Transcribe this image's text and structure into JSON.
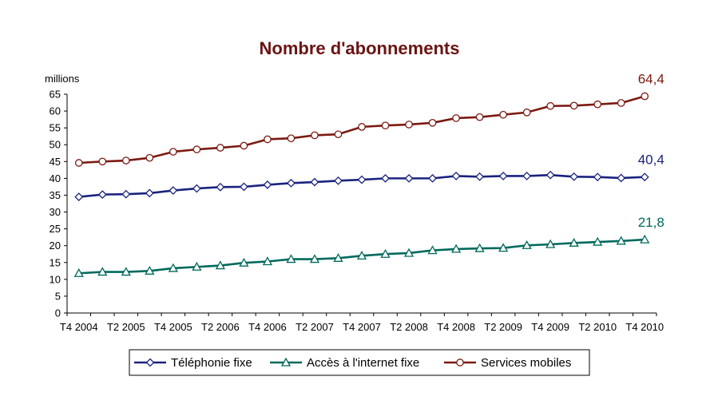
{
  "chart_data": {
    "type": "line",
    "title": "Nombre d'abonnements",
    "ylabel": "millions",
    "xlabel": "",
    "ylim": [
      0,
      65
    ],
    "yticks": [
      0,
      5,
      10,
      15,
      20,
      25,
      30,
      35,
      40,
      45,
      50,
      55,
      60,
      65
    ],
    "grid": false,
    "legend_position": "bottom",
    "x": [
      "T4 2004",
      "T1 2005",
      "T2 2005",
      "T3 2005",
      "T4 2005",
      "T1 2006",
      "T2 2006",
      "T3 2006",
      "T4 2006",
      "T1 2007",
      "T2 2007",
      "T3 2007",
      "T4 2007",
      "T1 2008",
      "T2 2008",
      "T3 2008",
      "T4 2008",
      "T1 2009",
      "T2 2009",
      "T3 2009",
      "T4 2009",
      "T1 2010",
      "T2 2010",
      "T3 2010",
      "T4 2010"
    ],
    "x_tick_labels": [
      "T4 2004",
      "T2 2005",
      "T4 2005",
      "T2 2006",
      "T4 2006",
      "T2 2007",
      "T4 2007",
      "T2 2008",
      "T4 2008",
      "T2 2009",
      "T4 2009",
      "T2 2010",
      "T4 2010"
    ],
    "series": [
      {
        "name": "Téléphonie fixe",
        "color": "#1a237e",
        "marker": "diamond",
        "values": [
          34.5,
          35.2,
          35.3,
          35.6,
          36.4,
          37.0,
          37.4,
          37.5,
          38.1,
          38.6,
          38.9,
          39.3,
          39.6,
          40.0,
          40.0,
          40.0,
          40.7,
          40.5,
          40.7,
          40.7,
          41.0,
          40.5,
          40.4,
          40.1,
          40.4
        ],
        "end_label": "40,4"
      },
      {
        "name": "Accès à l'internet fixe",
        "color": "#00695c",
        "marker": "triangle",
        "values": [
          11.8,
          12.2,
          12.2,
          12.5,
          13.3,
          13.7,
          14.1,
          14.9,
          15.3,
          16.0,
          16.0,
          16.3,
          17.0,
          17.5,
          17.8,
          18.6,
          19.0,
          19.2,
          19.3,
          20.1,
          20.4,
          20.8,
          21.1,
          21.4,
          21.8
        ],
        "end_label": "21,8"
      },
      {
        "name": "Services mobiles",
        "color": "#7b1a12",
        "marker": "circle",
        "values": [
          44.6,
          45.0,
          45.3,
          46.1,
          47.9,
          48.6,
          49.1,
          49.7,
          51.6,
          51.9,
          52.8,
          53.1,
          55.3,
          55.7,
          56.0,
          56.5,
          57.9,
          58.2,
          58.9,
          59.6,
          61.5,
          61.6,
          62.0,
          62.4,
          64.4
        ],
        "end_label": "64,4"
      }
    ]
  }
}
